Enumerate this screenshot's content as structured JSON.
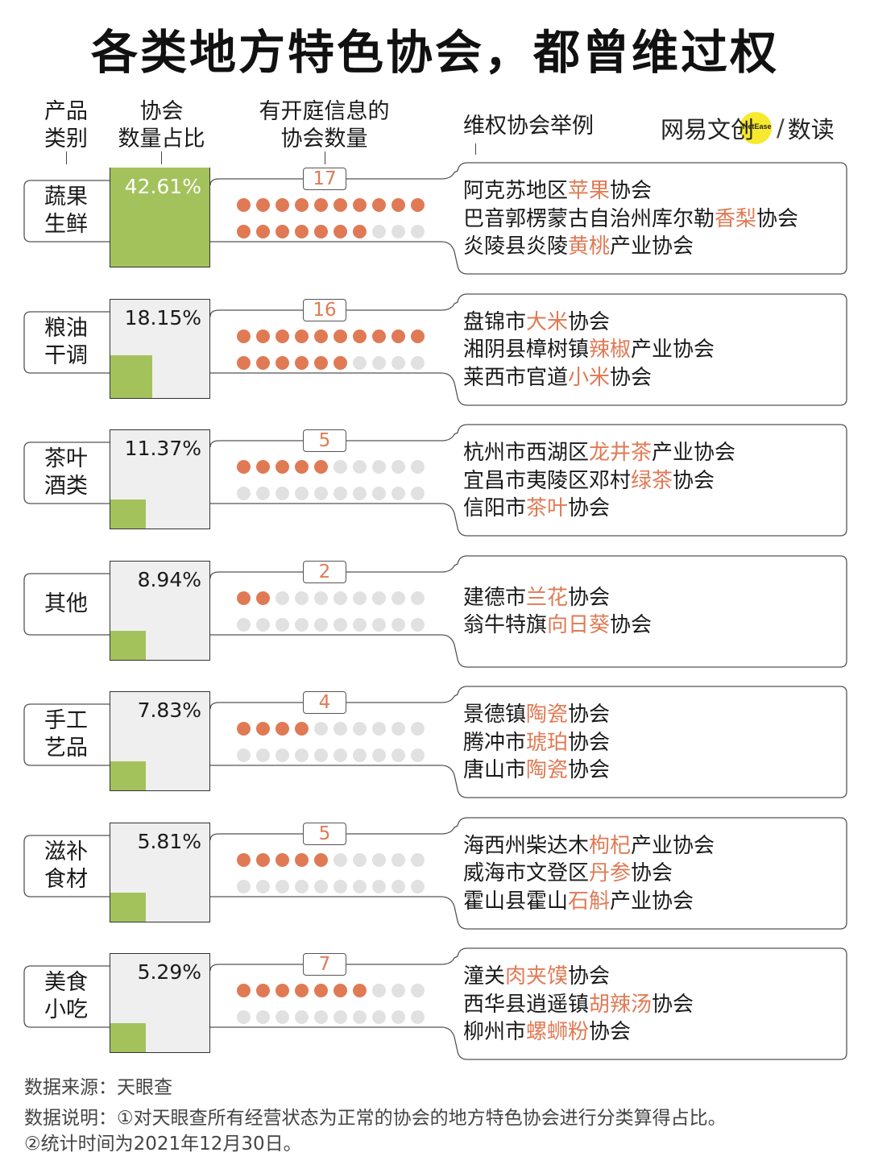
{
  "title": "各类地方特色协会，都曾维过权",
  "headers": {
    "category": [
      "产品",
      "类别"
    ],
    "share": [
      "协会",
      "数量占比"
    ],
    "court": [
      "有开庭信息的",
      "协会数量"
    ],
    "examples": "维权协会举例"
  },
  "logo": {
    "left": "网易文创",
    "badge": "NetEase",
    "right": "数读"
  },
  "colors": {
    "bar_fill": "#a4c25c",
    "dot_on": "#e07a55",
    "dot_off": "#e1e1e1",
    "highlight": "#e07a55",
    "box_bg": "#efefef"
  },
  "chart_data": {
    "type": "table",
    "rows": [
      {
        "category": [
          "蔬果",
          "生鲜"
        ],
        "share_label": "42.61%",
        "share": 42.61,
        "court_count_label": "17",
        "court_count": 17,
        "examples": [
          {
            "pre": "阿克苏地区",
            "hl": "苹果",
            "post": "协会"
          },
          {
            "pre": "巴音郭楞蒙古自治州库尔勒",
            "hl": "香梨",
            "post": "协会"
          },
          {
            "pre": "炎陵县炎陵",
            "hl": "黄桃",
            "post": "产业协会"
          }
        ]
      },
      {
        "category": [
          "粮油",
          "干调"
        ],
        "share_label": "18.15%",
        "share": 18.15,
        "court_count_label": "16",
        "court_count": 16,
        "examples": [
          {
            "pre": "盘锦市",
            "hl": "大米",
            "post": "协会"
          },
          {
            "pre": "湘阴县樟树镇",
            "hl": "辣椒",
            "post": "产业协会"
          },
          {
            "pre": "莱西市官道",
            "hl": "小米",
            "post": "协会"
          }
        ]
      },
      {
        "category": [
          "茶叶",
          "酒类"
        ],
        "share_label": "11.37%",
        "share": 11.37,
        "court_count_label": "5",
        "court_count": 5,
        "examples": [
          {
            "pre": "杭州市西湖区",
            "hl": "龙井茶",
            "post": "产业协会"
          },
          {
            "pre": "宜昌市夷陵区邓村",
            "hl": "绿茶",
            "post": "协会"
          },
          {
            "pre": "信阳市",
            "hl": "茶叶",
            "post": "协会"
          }
        ]
      },
      {
        "category": [
          "其他"
        ],
        "share_label": "8.94%",
        "share": 8.94,
        "court_count_label": "2",
        "court_count": 2,
        "examples": [
          {
            "pre": "建德市",
            "hl": "兰花",
            "post": "协会"
          },
          {
            "pre": "翁牛特旗",
            "hl": "向日葵",
            "post": "协会"
          }
        ]
      },
      {
        "category": [
          "手工",
          "艺品"
        ],
        "share_label": "7.83%",
        "share": 7.83,
        "court_count_label": "4",
        "court_count": 4,
        "examples": [
          {
            "pre": "景德镇",
            "hl": "陶瓷",
            "post": "协会"
          },
          {
            "pre": "腾冲市",
            "hl": "琥珀",
            "post": "协会"
          },
          {
            "pre": "唐山市",
            "hl": "陶瓷",
            "post": "协会"
          }
        ]
      },
      {
        "category": [
          "滋补",
          "食材"
        ],
        "share_label": "5.81%",
        "share": 5.81,
        "court_count_label": "5",
        "court_count": 5,
        "examples": [
          {
            "pre": "海西州柴达木",
            "hl": "枸杞",
            "post": "产业协会"
          },
          {
            "pre": "威海市文登区",
            "hl": "丹参",
            "post": "协会"
          },
          {
            "pre": "霍山县霍山",
            "hl": "石斛",
            "post": "产业协会"
          }
        ]
      },
      {
        "category": [
          "美食",
          "小吃"
        ],
        "share_label": "5.29%",
        "share": 5.29,
        "court_count_label": "7",
        "court_count": 7,
        "examples": [
          {
            "pre": "潼关",
            "hl": "肉夹馍",
            "post": "协会"
          },
          {
            "pre": "西华县逍遥镇",
            "hl": "胡辣汤",
            "post": "协会"
          },
          {
            "pre": "柳州市",
            "hl": "螺蛳粉",
            "post": "协会"
          }
        ]
      }
    ]
  },
  "notes": {
    "source": "数据来源：天眼查",
    "desc1": "数据说明：①对天眼查所有经营状态为正常的协会的地方特色协会进行分类算得占比。",
    "desc2": "②统计时间为2021年12月30日。"
  }
}
